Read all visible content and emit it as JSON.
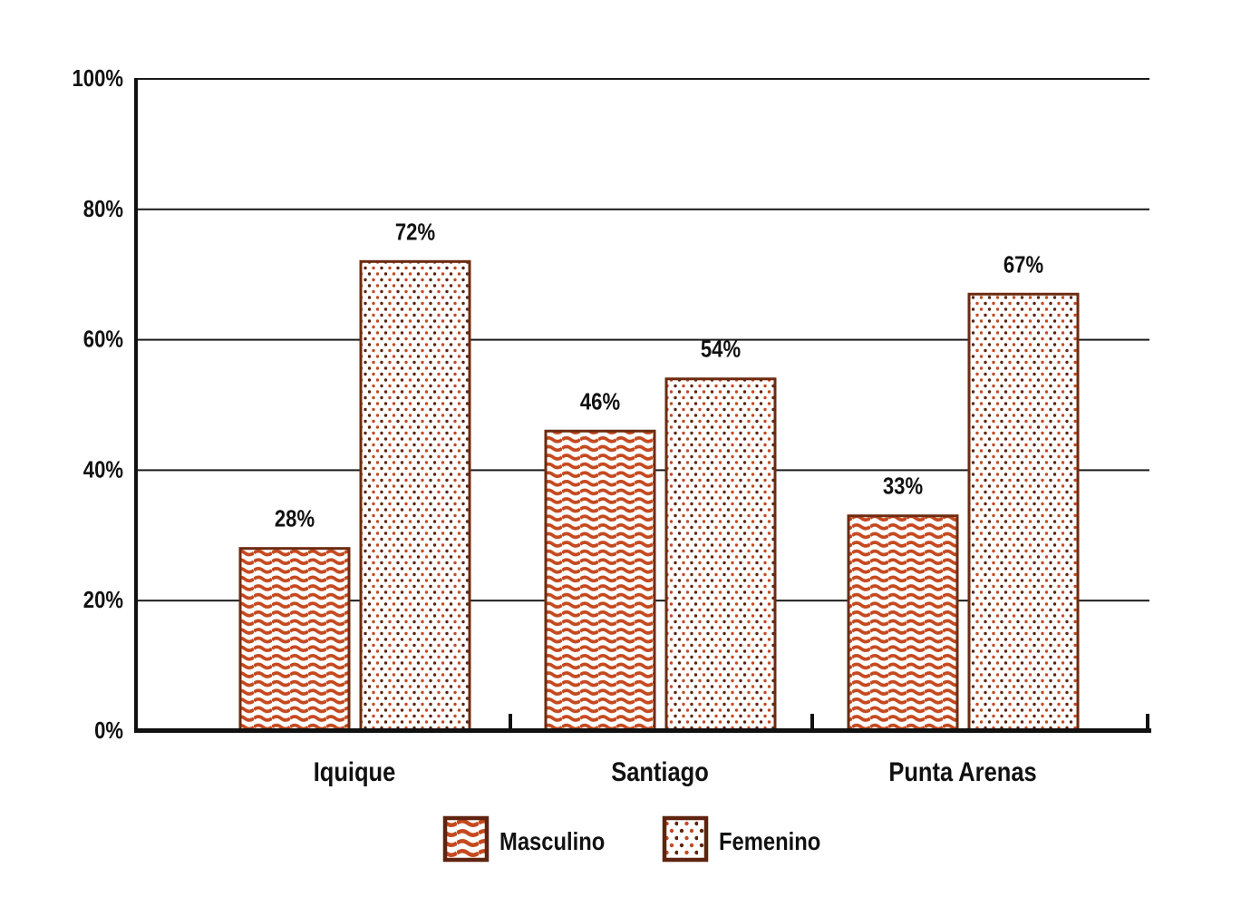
{
  "chart_data": {
    "type": "bar",
    "title": "",
    "categories": [
      "Iquique",
      "Santiago",
      "Punta Arenas"
    ],
    "series": [
      {
        "name": "Masculino",
        "pattern": "waves",
        "values": [
          28,
          46,
          33
        ]
      },
      {
        "name": "Femenino",
        "pattern": "dots",
        "values": [
          72,
          54,
          67
        ]
      }
    ],
    "value_suffix": "%",
    "ytick_values": [
      0,
      20,
      40,
      60,
      80,
      100
    ],
    "ytick_labels": [
      "0%",
      "20%",
      "40%",
      "60%",
      "80%",
      "100%"
    ],
    "ylim": [
      0,
      100
    ],
    "grid": true,
    "legend_position": "bottom",
    "legend": [
      {
        "label": "Masculino",
        "swatch": "waves-swatch"
      },
      {
        "label": "Femenino",
        "swatch": "dots-swatch"
      }
    ],
    "colors": {
      "pattern_orange": "#C5491F",
      "pattern_dark_dot": "#5C240F",
      "bar_border": "#6D2B11",
      "legend_border": "#5E2410",
      "bar_fill_bg": "#ffffff",
      "text": "#111111",
      "grid_line": "#1a1a1a",
      "axis": "#111111",
      "background": "#ffffff"
    }
  }
}
